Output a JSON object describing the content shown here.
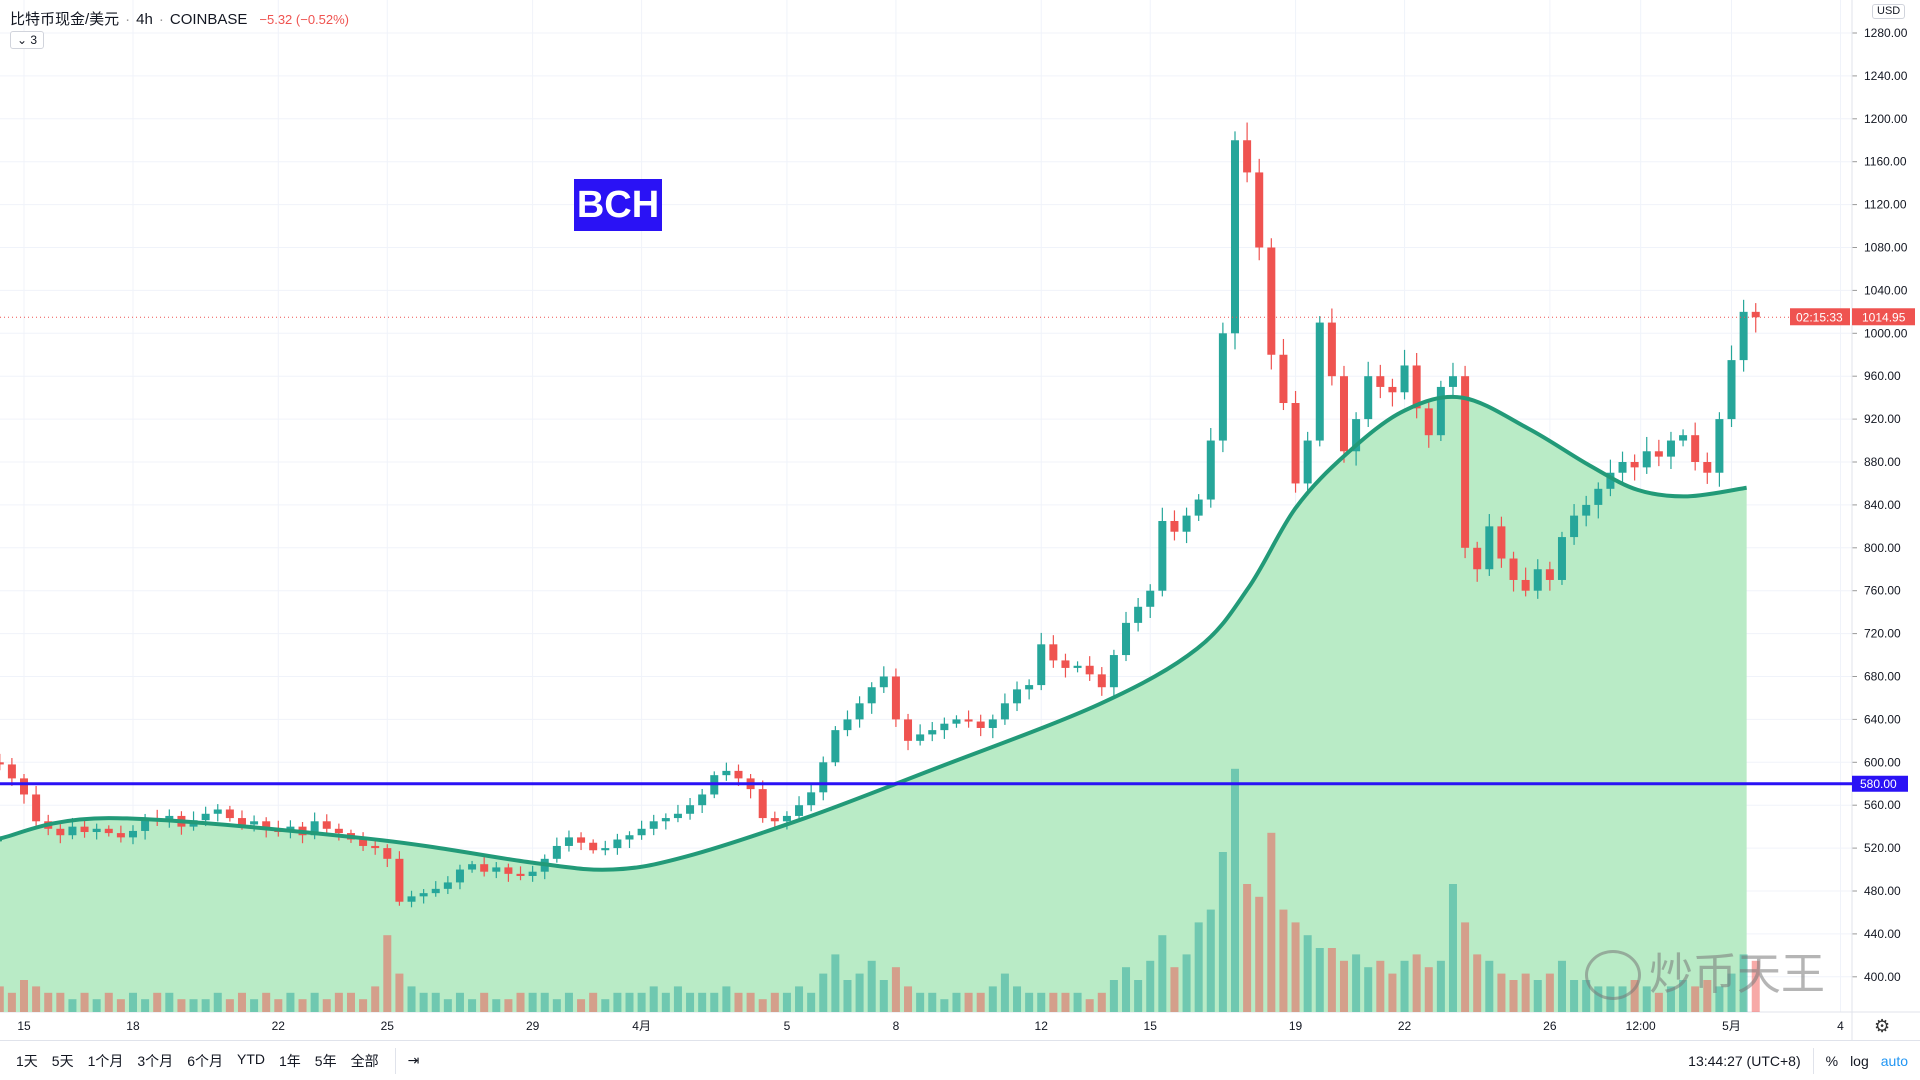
{
  "legend": {
    "symbol": "比特币现金/美元",
    "interval": "4h",
    "exchange": "COINBASE",
    "change": "−5.32 (−0.52%)",
    "indicators_collapsed": "3"
  },
  "annotation": {
    "label": "BCH",
    "color": "#2a12f5"
  },
  "price_axis": {
    "currency": "USD",
    "current_price": "1014.95",
    "countdown": "02:15:33",
    "level_label": "580.00"
  },
  "bottom_bar": {
    "ranges": [
      "1天",
      "5天",
      "1个月",
      "3个月",
      "6个月",
      "YTD",
      "1年",
      "5年",
      "全部"
    ],
    "clock": "13:44:27 (UTC+8)",
    "percent": "%",
    "log": "log",
    "auto": "auto"
  },
  "watermark": "炒币天王",
  "chart_data": {
    "type": "candlestick",
    "ylim": [
      380,
      1290
    ],
    "y_ticks": [
      400,
      440,
      480,
      520,
      560,
      600,
      640,
      680,
      720,
      760,
      800,
      840,
      880,
      920,
      960,
      1000,
      1040,
      1080,
      1120,
      1160,
      1200,
      1240,
      1280
    ],
    "x_ticks": [
      [
        "03-15",
        "15"
      ],
      [
        "03-18",
        "18"
      ],
      [
        "03-22",
        "22"
      ],
      [
        "03-25",
        "25"
      ],
      [
        "03-29",
        "29"
      ],
      [
        "04-01",
        "4月"
      ],
      [
        "04-05",
        "5"
      ],
      [
        "04-08",
        "8"
      ],
      [
        "04-12",
        "12"
      ],
      [
        "04-15",
        "15"
      ],
      [
        "04-19",
        "19"
      ],
      [
        "04-22",
        "22"
      ],
      [
        "04-26",
        "26"
      ],
      [
        "04-28 12:00",
        "12:00"
      ],
      [
        "05-01",
        "5月"
      ],
      [
        "05-04",
        "4"
      ]
    ],
    "start": "03-14 00:00",
    "closes": [
      600,
      598,
      585,
      570,
      545,
      538,
      532,
      540,
      535,
      538,
      534,
      530,
      536,
      548,
      545,
      550,
      540,
      546,
      552,
      556,
      548,
      542,
      545,
      538,
      535,
      540,
      532,
      545,
      538,
      534,
      528,
      522,
      520,
      510,
      470,
      475,
      478,
      482,
      488,
      500,
      505,
      498,
      502,
      496,
      494,
      498,
      510,
      522,
      530,
      525,
      518,
      520,
      528,
      532,
      538,
      545,
      548,
      552,
      560,
      570,
      588,
      592,
      585,
      575,
      548,
      545,
      550,
      560,
      572,
      600,
      630,
      640,
      655,
      670,
      680,
      640,
      620,
      626,
      630,
      636,
      640,
      638,
      632,
      640,
      655,
      668,
      672,
      710,
      695,
      688,
      690,
      682,
      670,
      700,
      730,
      745,
      760,
      825,
      815,
      830,
      845,
      900,
      1000,
      1180,
      1150,
      1080,
      980,
      935,
      860,
      900,
      1010,
      960,
      890,
      920,
      960,
      950,
      945,
      970,
      930,
      905,
      950,
      960,
      800,
      780,
      820,
      790,
      770,
      760,
      780,
      770,
      810,
      830,
      840,
      855,
      870,
      880,
      875,
      890,
      885,
      900,
      905,
      880,
      870,
      920,
      975,
      1020,
      1014.95
    ],
    "volumes": [
      3,
      4,
      3,
      5,
      4,
      3,
      3,
      2,
      3,
      2,
      3,
      2,
      3,
      2,
      3,
      3,
      2,
      2,
      2,
      3,
      2,
      3,
      2,
      3,
      2,
      3,
      2,
      3,
      2,
      3,
      3,
      2,
      4,
      12,
      6,
      4,
      3,
      3,
      2,
      3,
      2,
      3,
      2,
      2,
      3,
      3,
      3,
      2,
      3,
      2,
      3,
      2,
      3,
      3,
      3,
      4,
      3,
      4,
      3,
      3,
      3,
      4,
      3,
      3,
      2,
      3,
      3,
      4,
      3,
      6,
      9,
      5,
      6,
      8,
      5,
      7,
      4,
      3,
      3,
      2,
      3,
      3,
      3,
      4,
      6,
      4,
      3,
      3,
      3,
      3,
      3,
      2,
      3,
      5,
      7,
      5,
      8,
      12,
      7,
      9,
      14,
      16,
      25,
      38,
      20,
      18,
      28,
      16,
      14,
      12,
      10,
      10,
      8,
      9,
      7,
      8,
      6,
      8,
      9,
      7,
      8,
      20,
      14,
      9,
      8,
      6,
      5,
      6,
      5,
      6,
      8,
      5,
      5,
      4,
      4,
      4,
      5,
      4,
      3,
      4,
      5,
      4,
      5,
      4,
      6,
      9,
      8
    ],
    "moving_average": [
      [
        "03-14 08:00",
        529
      ],
      [
        "03-17 08:00",
        548
      ],
      [
        "03-24 10:00",
        529
      ],
      [
        "03-29 02:00",
        506
      ],
      [
        "03-31 05:00",
        500
      ],
      [
        "04-02 05:00",
        512
      ],
      [
        "04-05 12:00",
        548
      ],
      [
        "04-08 22:00",
        592
      ],
      [
        "04-13 14:00",
        654
      ],
      [
        "04-16 07:00",
        706
      ],
      [
        "04-17 17:00",
        763
      ],
      [
        "04-19 00:00",
        837
      ],
      [
        "04-20 10:00",
        888
      ],
      [
        "04-22 00:00",
        928
      ],
      [
        "04-23 14:00",
        940
      ],
      [
        "04-25 10:00",
        911
      ],
      [
        "04-27 02:00",
        877
      ],
      [
        "04-28 10:00",
        854
      ],
      [
        "04-29 19:00",
        848
      ],
      [
        "05-01 10:00",
        856
      ]
    ],
    "horizontal_level": 580,
    "colors": {
      "up": "#26a69a",
      "down": "#ef5350",
      "ma": "#229a78",
      "ma_fill": "#b9ebc6",
      "level": "#2a12f5"
    }
  }
}
